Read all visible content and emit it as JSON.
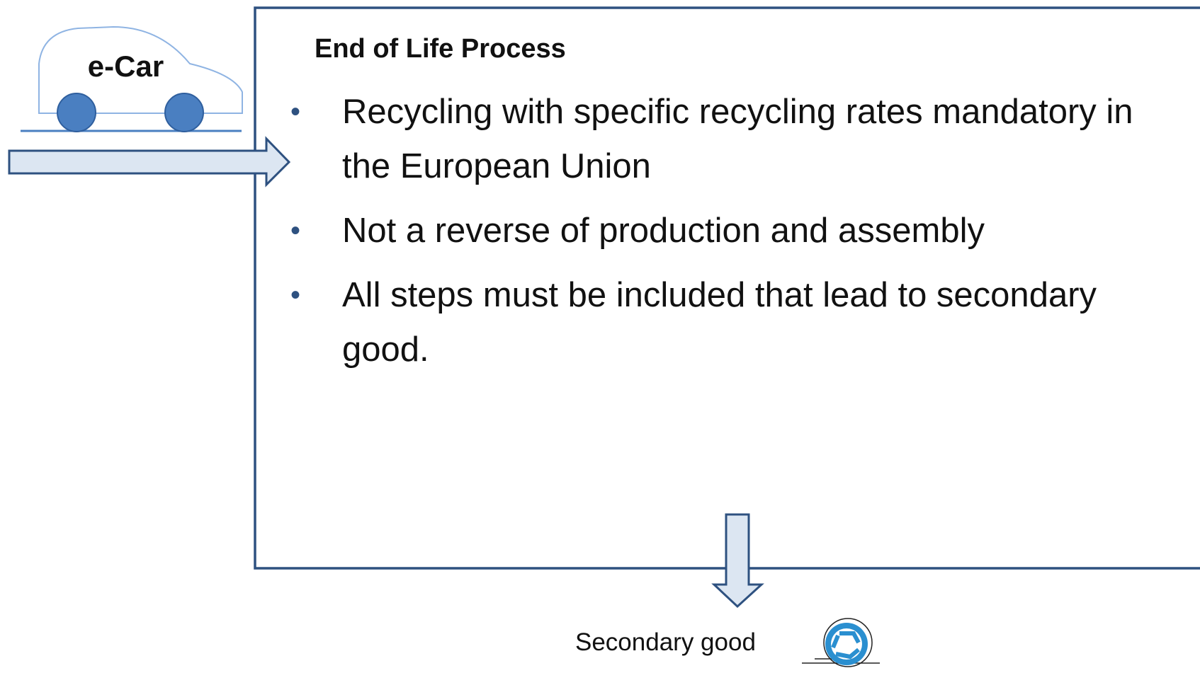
{
  "car": {
    "label": "e-Car"
  },
  "process": {
    "title": "End of Life Process",
    "bullets": [
      "Recycling with specific recycling rates mandatory in the European Union",
      "Not a reverse of production and assembly",
      "All steps must be included that lead to secondary good."
    ]
  },
  "output": {
    "label": "Secondary good"
  }
}
